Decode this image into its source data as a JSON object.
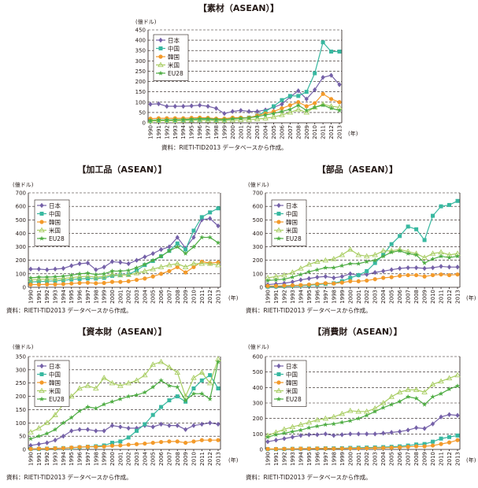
{
  "source_note": "資料：RIETI-TID2013 データベースから作成。",
  "unit_label": "(億ドル)",
  "year_label": "(年)",
  "colors": {
    "japan": "#7561a8",
    "china": "#38b8a0",
    "korea": "#f39a2a",
    "usa": "#a8cd62",
    "eu28": "#4fad44"
  },
  "chart_data": [
    {
      "id": "materials",
      "type": "line",
      "title": "【素材（ASEAN）】",
      "ylim": [
        0,
        450
      ],
      "yticks": [
        0,
        50,
        100,
        150,
        200,
        250,
        300,
        350,
        400,
        450
      ],
      "x": [
        1990,
        1991,
        1992,
        1993,
        1994,
        1995,
        1996,
        1997,
        1998,
        1999,
        2000,
        2001,
        2002,
        2003,
        2004,
        2005,
        2006,
        2007,
        2008,
        2009,
        2010,
        2011,
        2012,
        2013
      ],
      "series": [
        {
          "name": "日本",
          "color": "#7561a8",
          "marker": "diamond",
          "values": [
            90,
            92,
            80,
            80,
            80,
            82,
            85,
            80,
            70,
            45,
            55,
            60,
            55,
            55,
            62,
            75,
            90,
            125,
            155,
            115,
            160,
            220,
            230,
            185
          ]
        },
        {
          "name": "中国",
          "color": "#38b8a0",
          "marker": "square",
          "values": [
            10,
            10,
            12,
            13,
            14,
            15,
            16,
            17,
            14,
            15,
            20,
            22,
            25,
            35,
            55,
            80,
            110,
            130,
            130,
            150,
            240,
            390,
            345,
            345
          ]
        },
        {
          "name": "韓国",
          "color": "#f39a2a",
          "marker": "circle",
          "values": [
            20,
            22,
            22,
            22,
            22,
            24,
            25,
            24,
            20,
            20,
            25,
            25,
            25,
            35,
            45,
            55,
            70,
            85,
            100,
            80,
            95,
            140,
            115,
            100
          ]
        },
        {
          "name": "米国",
          "color": "#a8cd62",
          "marker": "triangle",
          "values": [
            8,
            10,
            10,
            10,
            11,
            12,
            13,
            12,
            11,
            11,
            13,
            14,
            15,
            18,
            22,
            28,
            38,
            50,
            65,
            50,
            75,
            90,
            80,
            75
          ]
        },
        {
          "name": "EU28",
          "color": "#4fad44",
          "marker": "star",
          "values": [
            12,
            14,
            14,
            15,
            16,
            18,
            20,
            20,
            17,
            16,
            20,
            22,
            24,
            30,
            38,
            45,
            55,
            65,
            85,
            60,
            75,
            85,
            70,
            60
          ]
        }
      ]
    },
    {
      "id": "processed",
      "type": "line",
      "title": "【加工品（ASEAN）】",
      "ylim": [
        0,
        700
      ],
      "yticks": [
        0,
        100,
        200,
        300,
        400,
        500,
        600,
        700
      ],
      "x": [
        1990,
        1991,
        1992,
        1993,
        1994,
        1995,
        1996,
        1997,
        1998,
        1999,
        2000,
        2001,
        2002,
        2003,
        2004,
        2005,
        2006,
        2007,
        2008,
        2009,
        2010,
        2011,
        2012,
        2013
      ],
      "series": [
        {
          "name": "日本",
          "color": "#7561a8",
          "marker": "diamond",
          "values": [
            135,
            135,
            130,
            135,
            140,
            160,
            175,
            180,
            130,
            150,
            190,
            185,
            175,
            200,
            225,
            250,
            280,
            300,
            370,
            290,
            370,
            500,
            510,
            455
          ]
        },
        {
          "name": "中国",
          "color": "#38b8a0",
          "marker": "square",
          "values": [
            40,
            42,
            45,
            48,
            52,
            58,
            62,
            65,
            65,
            70,
            85,
            90,
            95,
            125,
            165,
            195,
            230,
            270,
            325,
            280,
            420,
            520,
            555,
            585
          ]
        },
        {
          "name": "韓国",
          "color": "#f39a2a",
          "marker": "circle",
          "values": [
            20,
            20,
            22,
            22,
            24,
            28,
            32,
            34,
            30,
            32,
            40,
            40,
            45,
            55,
            65,
            80,
            100,
            120,
            150,
            110,
            150,
            190,
            180,
            185
          ]
        },
        {
          "name": "米国",
          "color": "#a8cd62",
          "marker": "triangle",
          "values": [
            55,
            60,
            60,
            62,
            65,
            72,
            78,
            82,
            75,
            80,
            95,
            90,
            92,
            105,
            120,
            135,
            150,
            165,
            175,
            150,
            175,
            175,
            175,
            165
          ]
        },
        {
          "name": "EU28",
          "color": "#4fad44",
          "marker": "star",
          "values": [
            70,
            75,
            75,
            78,
            82,
            90,
            100,
            105,
            95,
            100,
            120,
            120,
            125,
            145,
            170,
            200,
            230,
            270,
            300,
            250,
            300,
            370,
            370,
            330
          ]
        }
      ]
    },
    {
      "id": "parts",
      "type": "line",
      "title": "【部品（ASEAN）】",
      "ylim": [
        0,
        700
      ],
      "yticks": [
        0,
        100,
        200,
        300,
        400,
        500,
        600,
        700
      ],
      "x": [
        1990,
        1991,
        1992,
        1993,
        1994,
        1995,
        1996,
        1997,
        1998,
        1999,
        2000,
        2001,
        2002,
        2003,
        2004,
        2005,
        2006,
        2007,
        2008,
        2009,
        2010,
        2011,
        2012,
        2013
      ],
      "series": [
        {
          "name": "日本",
          "color": "#7561a8",
          "marker": "diamond",
          "values": [
            20,
            25,
            30,
            40,
            55,
            65,
            75,
            80,
            70,
            80,
            100,
            90,
            95,
            110,
            120,
            130,
            140,
            145,
            145,
            140,
            145,
            155,
            150,
            150
          ]
        },
        {
          "name": "中国",
          "color": "#38b8a0",
          "marker": "square",
          "values": [
            5,
            6,
            8,
            10,
            12,
            15,
            20,
            25,
            30,
            45,
            70,
            90,
            120,
            180,
            240,
            320,
            380,
            450,
            430,
            350,
            530,
            600,
            610,
            640
          ]
        },
        {
          "name": "韓国",
          "color": "#f39a2a",
          "marker": "circle",
          "values": [
            10,
            10,
            12,
            14,
            16,
            20,
            25,
            30,
            28,
            35,
            45,
            45,
            50,
            60,
            70,
            75,
            85,
            90,
            90,
            80,
            90,
            95,
            90,
            95
          ]
        },
        {
          "name": "米国",
          "color": "#a8cd62",
          "marker": "triangle",
          "values": [
            70,
            80,
            90,
            110,
            140,
            170,
            190,
            200,
            210,
            240,
            280,
            240,
            230,
            240,
            270,
            270,
            280,
            265,
            250,
            220,
            250,
            260,
            240,
            250
          ]
        },
        {
          "name": "EU28",
          "color": "#4fad44",
          "marker": "star",
          "values": [
            50,
            55,
            60,
            75,
            95,
            115,
            130,
            145,
            145,
            160,
            175,
            175,
            190,
            200,
            230,
            260,
            270,
            250,
            240,
            180,
            210,
            230,
            220,
            230
          ]
        }
      ]
    },
    {
      "id": "capital",
      "type": "line",
      "title": "【資本財（ASEAN）】",
      "ylim": [
        0,
        350
      ],
      "yticks": [
        0,
        50,
        100,
        150,
        200,
        250,
        300,
        350
      ],
      "x": [
        1990,
        1991,
        1992,
        1993,
        1994,
        1995,
        1996,
        1997,
        1998,
        1999,
        2000,
        2001,
        2002,
        2003,
        2004,
        2005,
        2006,
        2007,
        2008,
        2009,
        2010,
        2011,
        2012,
        2013
      ],
      "series": [
        {
          "name": "日本",
          "color": "#7561a8",
          "marker": "diamond",
          "values": [
            15,
            20,
            25,
            35,
            50,
            70,
            75,
            75,
            70,
            70,
            90,
            85,
            80,
            80,
            90,
            85,
            95,
            90,
            90,
            75,
            90,
            95,
            100,
            95
          ]
        },
        {
          "name": "中国",
          "color": "#38b8a0",
          "marker": "square",
          "values": [
            2,
            2,
            3,
            4,
            5,
            6,
            8,
            10,
            12,
            15,
            25,
            30,
            45,
            70,
            95,
            130,
            160,
            185,
            200,
            180,
            230,
            260,
            280,
            230
          ]
        },
        {
          "name": "韓国",
          "color": "#f39a2a",
          "marker": "circle",
          "values": [
            2,
            3,
            3,
            4,
            5,
            7,
            9,
            10,
            10,
            11,
            14,
            15,
            18,
            20,
            22,
            25,
            28,
            30,
            30,
            25,
            30,
            35,
            35,
            35
          ]
        },
        {
          "name": "米国",
          "color": "#a8cd62",
          "marker": "triangle",
          "values": [
            65,
            80,
            100,
            130,
            170,
            200,
            230,
            240,
            230,
            270,
            250,
            240,
            250,
            260,
            280,
            320,
            330,
            310,
            290,
            200,
            270,
            290,
            250,
            340
          ]
        },
        {
          "name": "EU28",
          "color": "#4fad44",
          "marker": "star",
          "values": [
            40,
            50,
            60,
            75,
            100,
            120,
            145,
            160,
            155,
            170,
            180,
            190,
            200,
            205,
            215,
            235,
            260,
            240,
            235,
            185,
            210,
            210,
            190,
            330
          ]
        }
      ]
    },
    {
      "id": "consumer",
      "type": "line",
      "title": "【消費財（ASEAN）】",
      "ylim": [
        0,
        600
      ],
      "yticks": [
        0,
        100,
        200,
        300,
        400,
        500,
        600
      ],
      "x": [
        1990,
        1991,
        1992,
        1993,
        1994,
        1995,
        1996,
        1997,
        1998,
        1999,
        2000,
        2001,
        2002,
        2003,
        2004,
        2005,
        2006,
        2007,
        2008,
        2009,
        2010,
        2011,
        2012,
        2013
      ],
      "series": [
        {
          "name": "日本",
          "color": "#7561a8",
          "marker": "diamond",
          "values": [
            50,
            60,
            70,
            80,
            90,
            95,
            95,
            100,
            90,
            95,
            100,
            100,
            100,
            100,
            105,
            110,
            115,
            125,
            140,
            135,
            165,
            210,
            225,
            220
          ]
        },
        {
          "name": "中国",
          "color": "#38b8a0",
          "marker": "square",
          "values": [
            2,
            2,
            3,
            4,
            5,
            5,
            6,
            7,
            7,
            8,
            10,
            11,
            12,
            13,
            15,
            17,
            20,
            25,
            32,
            35,
            50,
            70,
            80,
            90
          ]
        },
        {
          "name": "韓国",
          "color": "#f39a2a",
          "marker": "circle",
          "values": [
            3,
            3,
            4,
            4,
            5,
            5,
            6,
            6,
            5,
            6,
            7,
            7,
            8,
            9,
            10,
            12,
            14,
            17,
            20,
            20,
            25,
            35,
            45,
            60
          ]
        },
        {
          "name": "米国",
          "color": "#a8cd62",
          "marker": "triangle",
          "values": [
            90,
            110,
            130,
            145,
            160,
            175,
            190,
            200,
            210,
            230,
            250,
            245,
            245,
            265,
            300,
            340,
            370,
            385,
            385,
            370,
            420,
            440,
            460,
            480
          ]
        },
        {
          "name": "EU28",
          "color": "#4fad44",
          "marker": "star",
          "values": [
            80,
            95,
            105,
            115,
            125,
            140,
            150,
            160,
            165,
            175,
            185,
            200,
            220,
            245,
            270,
            290,
            310,
            340,
            330,
            290,
            340,
            360,
            390,
            410
          ]
        }
      ]
    }
  ]
}
